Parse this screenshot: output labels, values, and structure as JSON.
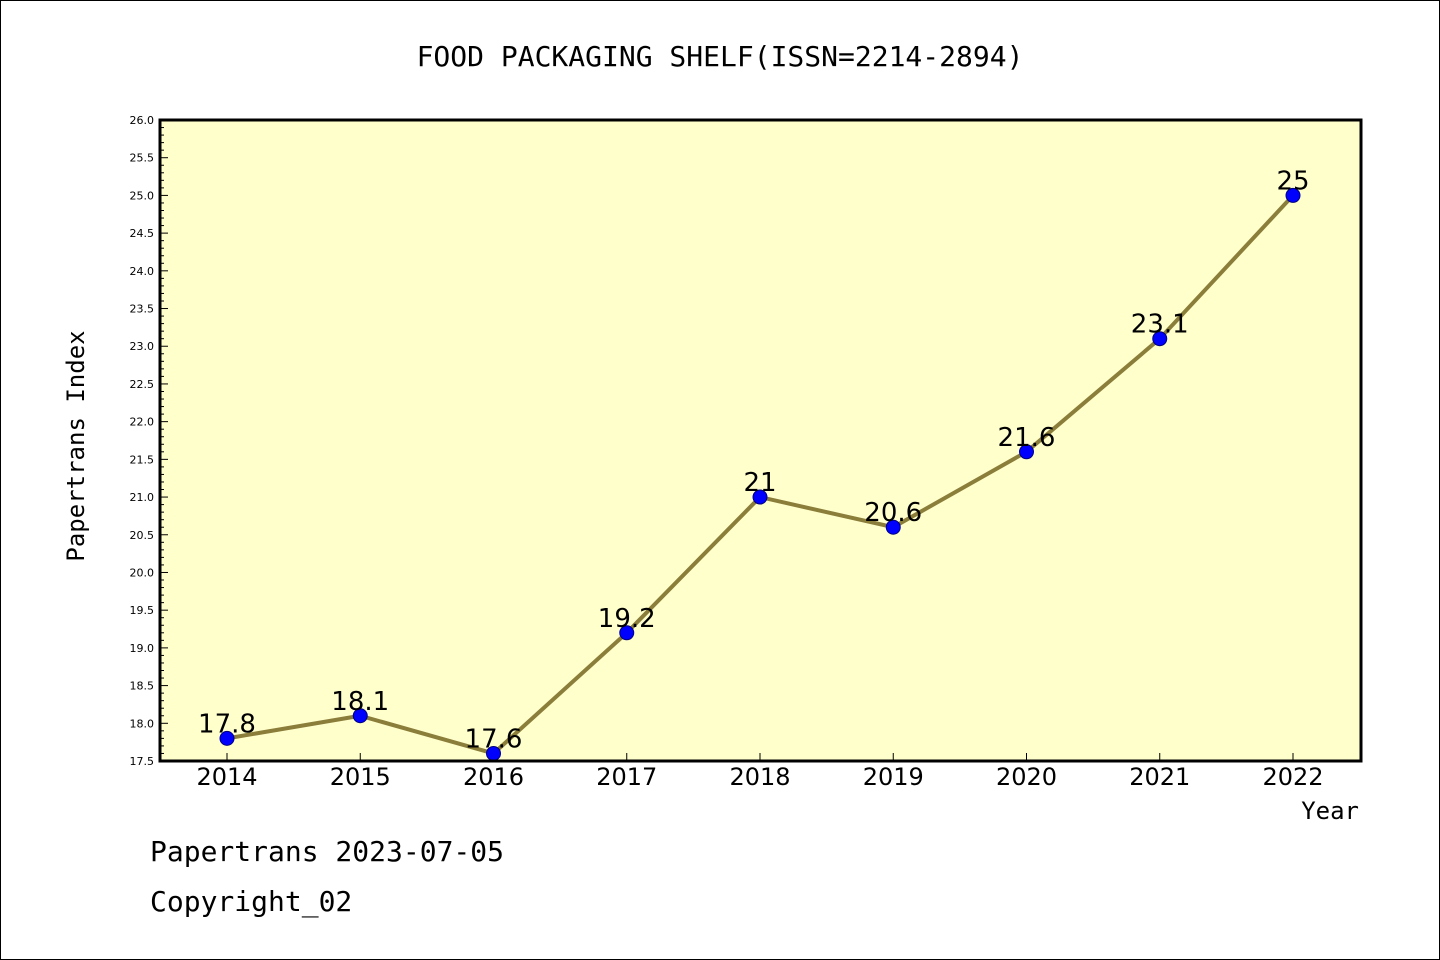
{
  "chart_data": {
    "type": "line",
    "title": "FOOD PACKAGING SHELF(ISSN=2214-2894)",
    "xlabel": "Year",
    "ylabel": "Papertrans Index",
    "categories": [
      "2014",
      "2015",
      "2016",
      "2017",
      "2018",
      "2019",
      "2020",
      "2021",
      "2022"
    ],
    "series": [
      {
        "values": [
          17.8,
          18.1,
          17.6,
          19.2,
          21,
          20.6,
          21.6,
          23.1,
          25
        ],
        "labels": [
          "17.8",
          "18.1",
          "17.6",
          "19.2",
          "21",
          "20.6",
          "21.6",
          "23.1",
          "25"
        ]
      }
    ],
    "ylim": [
      17.5,
      26.0
    ],
    "yticks": [
      "17.5",
      "18.0",
      "18.5",
      "19.0",
      "19.5",
      "20.0",
      "20.5",
      "21.0",
      "21.5",
      "22.0",
      "22.5",
      "23.0",
      "23.5",
      "24.0",
      "24.5",
      "25.0",
      "25.5",
      "26.0"
    ],
    "grid": false,
    "legend": "none",
    "colors": {
      "plot_background": "#ffffcc",
      "line": "#8b7d3a",
      "marker": "#0000ff",
      "axis": "#000000"
    }
  },
  "footer": {
    "line1": "Papertrans 2023-07-05",
    "line2": "Copyright_02"
  }
}
